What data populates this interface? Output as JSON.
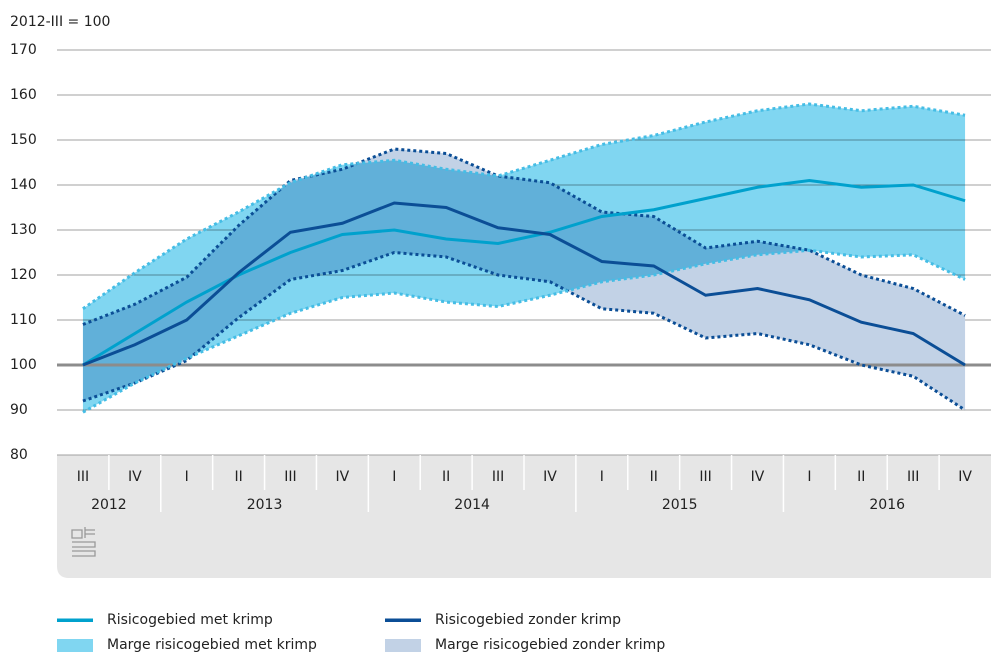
{
  "chart_data": {
    "type": "line",
    "y_label": "2012-III = 100",
    "categories": [
      "III",
      "IV",
      "I",
      "II",
      "III",
      "IV",
      "I",
      "II",
      "III",
      "IV",
      "I",
      "II",
      "III",
      "IV",
      "I",
      "II",
      "III",
      "IV"
    ],
    "groups": [
      "2012",
      "2013",
      "2014",
      "2015",
      "2016"
    ],
    "ylim": [
      80,
      170
    ],
    "yticks": [
      80,
      90,
      100,
      110,
      120,
      130,
      140,
      150,
      160,
      170
    ],
    "grid": true,
    "baseline": 100,
    "bands": [
      {
        "name": "Marge risicogebied zonder krimp",
        "color": "#c2d2e6",
        "line_color": "#0b4e96",
        "upper": [
          109,
          113.5,
          119.5,
          131,
          141,
          143.5,
          148,
          147,
          142,
          140.5,
          134,
          133,
          126,
          127.5,
          125.5,
          120,
          117,
          111
        ],
        "lower": [
          92,
          96,
          101,
          110.5,
          119,
          121,
          125,
          124,
          120,
          118.5,
          112.5,
          111.5,
          106,
          107,
          104.5,
          100,
          97.5,
          90
        ]
      },
      {
        "name": "Marge risicogebied met krimp",
        "color": "#80d6f1",
        "line_color": "#45bde5",
        "upper": [
          112.5,
          120.5,
          128,
          134,
          140.5,
          144.5,
          145.5,
          143.5,
          142,
          145.5,
          149,
          151,
          154,
          156.5,
          158,
          156.5,
          157.5,
          155.5
        ],
        "lower": [
          89.5,
          96,
          101.5,
          106.5,
          111.5,
          115,
          116,
          114,
          113,
          115.5,
          118.5,
          120,
          122.5,
          124.5,
          125.5,
          124,
          124.5,
          119
        ]
      }
    ],
    "series": [
      {
        "name": "Risicogebied  met krimp",
        "color": "#00a1cd",
        "values": [
          100,
          107,
          114,
          120,
          125,
          129,
          130,
          128,
          127,
          129.5,
          133,
          134.5,
          137,
          139.5,
          141,
          139.5,
          140,
          136.5
        ]
      },
      {
        "name": "Risicogebied zonder krimp",
        "color": "#0b4e96",
        "values": [
          100,
          104.5,
          110,
          120.5,
          129.5,
          131.5,
          136,
          135,
          130.5,
          129,
          123,
          122,
          115.5,
          117,
          114.5,
          109.5,
          107,
          100
        ]
      }
    ]
  }
}
